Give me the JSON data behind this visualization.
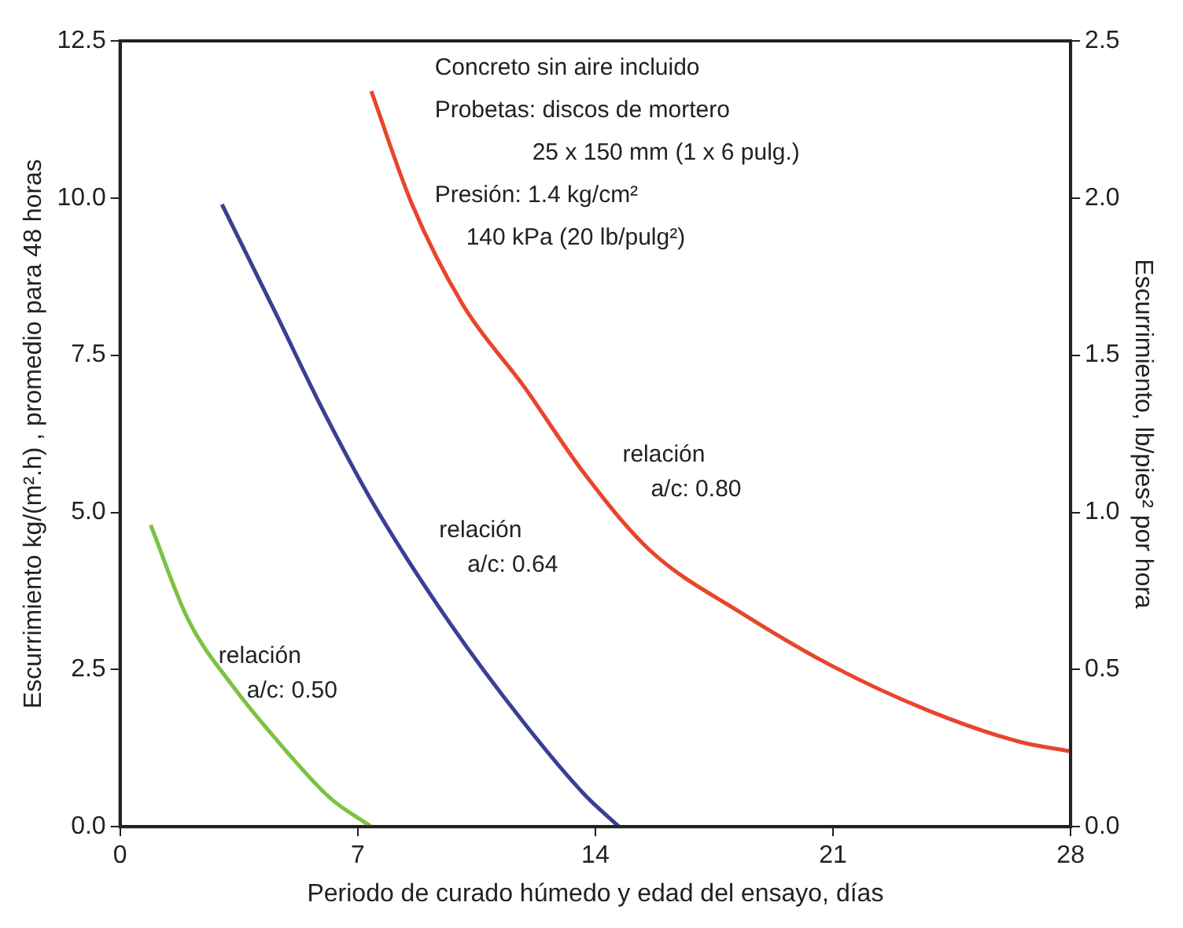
{
  "chart_data": {
    "type": "line",
    "xlabel": "Periodo de curado húmedo y edad del ensayo, días",
    "ylabel": "Escurrimiento kg/(m².h) , promedio para 48 horas",
    "y2label": "Escurrimiento, lb/pies² por hora",
    "xlim": [
      0,
      28
    ],
    "xticks": [
      0,
      7,
      14,
      21,
      28
    ],
    "ylim": [
      0,
      12.5
    ],
    "yticks": [
      {
        "value": 0,
        "label": "0.0"
      },
      {
        "value": 2.5,
        "label": "2.5"
      },
      {
        "value": 5,
        "label": "5.0"
      },
      {
        "value": 7.5,
        "label": "7.5"
      },
      {
        "value": 10,
        "label": "10.0"
      },
      {
        "value": 12.5,
        "label": "12.5"
      }
    ],
    "y2lim": [
      0,
      2.5
    ],
    "y2ticks": [
      {
        "value": 0,
        "label": "0.0"
      },
      {
        "value": 0.5,
        "label": "0.5"
      },
      {
        "value": 1,
        "label": "1.0"
      },
      {
        "value": 1.5,
        "label": "1.5"
      },
      {
        "value": 2,
        "label": "2.0"
      },
      {
        "value": 2.5,
        "label": "2.5"
      }
    ],
    "grid": false,
    "marker": "none",
    "line_style": "solid",
    "series": [
      {
        "name": "relación a/c: 0.50",
        "color": "#7cc242",
        "x": [
          0.9,
          2.0,
          3.3,
          4.9,
          6.2,
          7.4
        ],
        "values": [
          4.8,
          3.3,
          2.25,
          1.2,
          0.45,
          0
        ]
      },
      {
        "name": "relación a/c: 0.64",
        "color": "#3a3f94",
        "x": [
          3.0,
          4.6,
          6.0,
          7.5,
          9.7,
          11.9,
          13.7,
          14.7
        ],
        "values": [
          9.9,
          8.15,
          6.6,
          5.1,
          3.25,
          1.65,
          0.5,
          0
        ]
      },
      {
        "name": "relación a/c: 0.80",
        "color": "#e8452c",
        "x": [
          7.4,
          8.6,
          10.1,
          11.9,
          13.7,
          15.6,
          18.3,
          21.0,
          23.8,
          26.5,
          28
        ],
        "values": [
          11.7,
          9.9,
          8.3,
          7.0,
          5.6,
          4.4,
          3.4,
          2.55,
          1.85,
          1.35,
          1.2
        ]
      }
    ],
    "annotations": [
      "Concreto sin aire incluido",
      "Probetas: discos de mortero",
      "25 x 150 mm (1 x 6 pulg.)",
      "Presión: 1.4 kg/cm²",
      "140 kPa (20 lb/pulg²)"
    ]
  }
}
